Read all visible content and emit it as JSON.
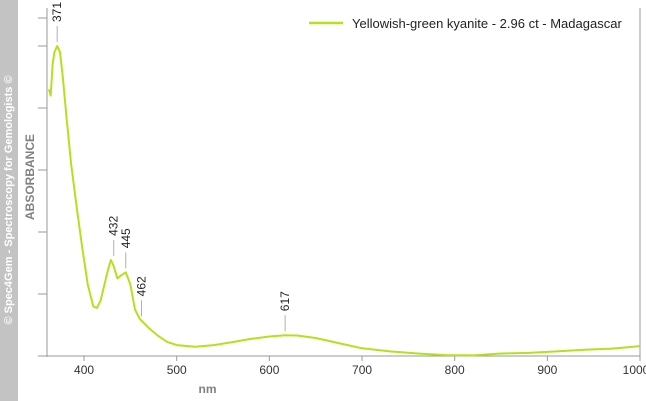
{
  "watermark": "© Spec4Gem - Spectroscopy for Gemologists ©",
  "chart_data": {
    "type": "line",
    "xlabel": "nm",
    "ylabel": "ABSORBANCE",
    "xlim": [
      360,
      1000
    ],
    "xticks": [
      400,
      500,
      600,
      700,
      800,
      900,
      1000
    ],
    "ylim": [
      0,
      1
    ],
    "yticks_count": 6,
    "grid": false,
    "legend_position": "top-right",
    "series": [
      {
        "name": "Yellowish-green kyanite - 2.96 ct - Madagascar",
        "color": "#b5e01c",
        "x": [
          362,
          364,
          366,
          368,
          371,
          374,
          377,
          381,
          386,
          392,
          398,
          404,
          410,
          414,
          418,
          422,
          426,
          429,
          432,
          436,
          440,
          445,
          450,
          455,
          460,
          465,
          470,
          480,
          490,
          500,
          520,
          540,
          560,
          580,
          600,
          617,
          630,
          650,
          670,
          700,
          730,
          760,
          790,
          820,
          850,
          880,
          910,
          940,
          970,
          1000
        ],
        "y": [
          0.86,
          0.84,
          0.94,
          0.98,
          1.0,
          0.98,
          0.9,
          0.77,
          0.62,
          0.48,
          0.35,
          0.23,
          0.16,
          0.155,
          0.18,
          0.23,
          0.28,
          0.31,
          0.29,
          0.25,
          0.26,
          0.27,
          0.23,
          0.15,
          0.12,
          0.105,
          0.09,
          0.065,
          0.045,
          0.035,
          0.03,
          0.035,
          0.045,
          0.055,
          0.063,
          0.067,
          0.066,
          0.058,
          0.045,
          0.025,
          0.015,
          0.008,
          0.003,
          0.002,
          0.008,
          0.01,
          0.015,
          0.02,
          0.024,
          0.032
        ]
      }
    ],
    "annotations": [
      {
        "label": "371",
        "x": 371,
        "y": 1.0
      },
      {
        "label": "432",
        "x": 432,
        "y": 0.31
      },
      {
        "label": "445",
        "x": 445,
        "y": 0.27
      },
      {
        "label": "462",
        "x": 462,
        "y": 0.115
      },
      {
        "label": "617",
        "x": 617,
        "y": 0.067
      }
    ]
  }
}
